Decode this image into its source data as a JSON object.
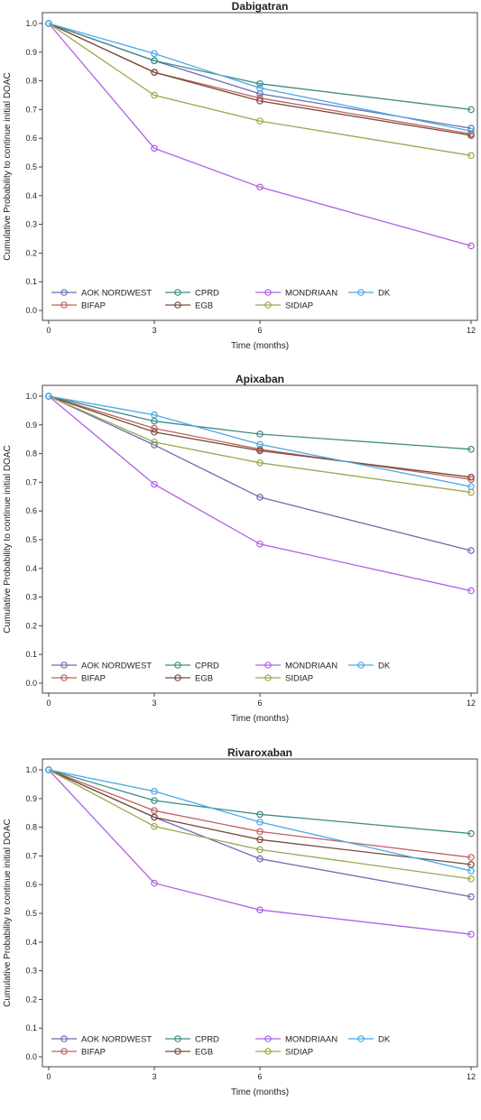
{
  "chart_data": [
    {
      "type": "line",
      "title": "Dabigatran",
      "xlabel": "Time (months)",
      "ylabel": "Cumulative Probability to continue initial DOAC",
      "x": [
        0,
        3,
        6,
        12
      ],
      "xlim": [
        0,
        12
      ],
      "ylim": [
        0,
        1.0
      ],
      "xticks": [
        "0",
        "3",
        "6",
        "12"
      ],
      "yticks": [
        "0.0",
        "0.1",
        "0.2",
        "0.3",
        "0.4",
        "0.5",
        "0.6",
        "0.7",
        "0.8",
        "0.9",
        "1.0"
      ],
      "legend_placement": "bottom-inside",
      "series": [
        {
          "name": "AOK NORDWEST",
          "color": "#6A6FB0",
          "values": [
            1.0,
            0.87,
            0.755,
            0.635
          ]
        },
        {
          "name": "BIFAP",
          "color": "#C0605A",
          "values": [
            1.0,
            0.83,
            0.74,
            0.615
          ]
        },
        {
          "name": "CPRD",
          "color": "#3E8C84",
          "values": [
            1.0,
            0.87,
            0.79,
            0.7
          ]
        },
        {
          "name": "EGB",
          "color": "#7A4A3A",
          "values": [
            1.0,
            0.83,
            0.73,
            0.61
          ]
        },
        {
          "name": "MONDRIAAN",
          "color": "#B060E0",
          "values": [
            1.0,
            0.565,
            0.43,
            0.225
          ]
        },
        {
          "name": "SIDIAP",
          "color": "#9AA84E",
          "values": [
            1.0,
            0.75,
            0.66,
            0.54
          ]
        },
        {
          "name": "DK",
          "color": "#4AA8E8",
          "values": [
            1.0,
            0.895,
            0.775,
            0.625
          ]
        }
      ]
    },
    {
      "type": "line",
      "title": "Apixaban",
      "xlabel": "Time (months)",
      "ylabel": "Cumulative Probability to continue initial DOAC",
      "x": [
        0,
        3,
        6,
        12
      ],
      "xlim": [
        0,
        12
      ],
      "ylim": [
        0,
        1.0
      ],
      "xticks": [
        "0",
        "3",
        "6",
        "12"
      ],
      "yticks": [
        "0.0",
        "0.1",
        "0.2",
        "0.3",
        "0.4",
        "0.5",
        "0.6",
        "0.7",
        "0.8",
        "0.9",
        "1.0"
      ],
      "legend_placement": "bottom-inside",
      "series": [
        {
          "name": "AOK NORDWEST",
          "color": "#6A6FB0",
          "values": [
            1.0,
            0.83,
            0.648,
            0.462
          ]
        },
        {
          "name": "BIFAP",
          "color": "#C0605A",
          "values": [
            1.0,
            0.888,
            0.815,
            0.71
          ]
        },
        {
          "name": "CPRD",
          "color": "#3E8C84",
          "values": [
            1.0,
            0.913,
            0.868,
            0.815
          ]
        },
        {
          "name": "EGB",
          "color": "#7A4A3A",
          "values": [
            1.0,
            0.875,
            0.81,
            0.718
          ]
        },
        {
          "name": "MONDRIAAN",
          "color": "#B060E0",
          "values": [
            1.0,
            0.693,
            0.485,
            0.322
          ]
        },
        {
          "name": "SIDIAP",
          "color": "#9AA84E",
          "values": [
            1.0,
            0.84,
            0.768,
            0.665
          ]
        },
        {
          "name": "DK",
          "color": "#4AA8E8",
          "values": [
            1.0,
            0.935,
            0.832,
            0.685
          ]
        }
      ]
    },
    {
      "type": "line",
      "title": "Rivaroxaban",
      "xlabel": "Time (months)",
      "ylabel": "Cumulative Probability to continue initial DOAC",
      "x": [
        0,
        3,
        6,
        12
      ],
      "xlim": [
        0,
        12
      ],
      "ylim": [
        0,
        1.0
      ],
      "xticks": [
        "0",
        "3",
        "6",
        "12"
      ],
      "yticks": [
        "0.0",
        "0.1",
        "0.2",
        "0.3",
        "0.4",
        "0.5",
        "0.6",
        "0.7",
        "0.8",
        "0.9",
        "1.0"
      ],
      "legend_placement": "bottom-inside",
      "series": [
        {
          "name": "AOK NORDWEST",
          "color": "#6A6FB0",
          "values": [
            1.0,
            0.835,
            0.69,
            0.558
          ]
        },
        {
          "name": "BIFAP",
          "color": "#C0605A",
          "values": [
            1.0,
            0.858,
            0.785,
            0.695
          ]
        },
        {
          "name": "CPRD",
          "color": "#3E8C84",
          "values": [
            1.0,
            0.893,
            0.845,
            0.778
          ]
        },
        {
          "name": "EGB",
          "color": "#7A4A3A",
          "values": [
            1.0,
            0.835,
            0.757,
            0.67
          ]
        },
        {
          "name": "MONDRIAAN",
          "color": "#B060E0",
          "values": [
            1.0,
            0.605,
            0.512,
            0.427
          ]
        },
        {
          "name": "SIDIAP",
          "color": "#9AA84E",
          "values": [
            1.0,
            0.803,
            0.722,
            0.62
          ]
        },
        {
          "name": "DK",
          "color": "#4AA8E8",
          "values": [
            1.0,
            0.925,
            0.818,
            0.648
          ]
        }
      ]
    }
  ]
}
